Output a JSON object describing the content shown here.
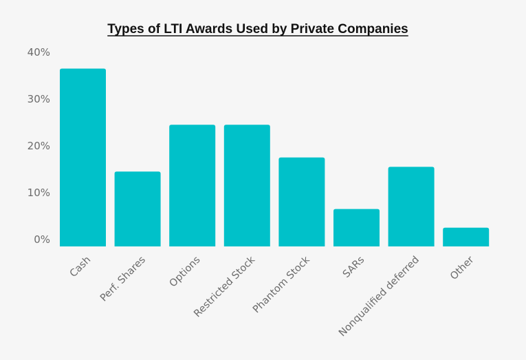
{
  "chart_data": {
    "type": "bar",
    "title": "Types of LTI Awards Used by Private Companies",
    "xlabel": "",
    "ylabel": "",
    "categories": [
      "Cash",
      "Perf. Shares",
      "Options",
      "Restricted Stock",
      "Phantom Stock",
      "SARs",
      "Nonqualified deferred",
      "Other"
    ],
    "values": [
      38,
      16,
      26,
      26,
      19,
      8,
      17,
      4
    ],
    "ylim": [
      0,
      40
    ],
    "yticks": [
      "0%",
      "10%",
      "20%",
      "30%",
      "40%"
    ],
    "ytick_values": [
      0,
      10,
      20,
      30,
      40
    ],
    "grid": false,
    "legend": "none",
    "bar_color": "#00c1c9"
  }
}
